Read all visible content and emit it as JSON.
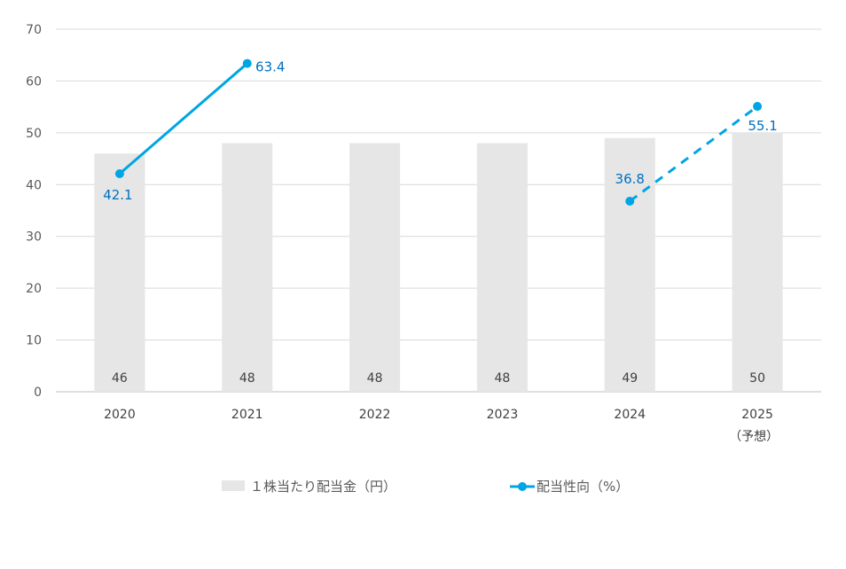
{
  "chart_data": {
    "type": "bar",
    "categories": [
      "2020",
      "2021",
      "2022",
      "2023",
      "2024",
      "2025"
    ],
    "category_sublabels": [
      "",
      "",
      "",
      "",
      "",
      "（予想）"
    ],
    "ylim": [
      0,
      70
    ],
    "yticks": [
      "0",
      "10",
      "20",
      "30",
      "40",
      "50",
      "60",
      "70"
    ],
    "grid": true,
    "legend_position": "bottom",
    "series": [
      {
        "name": "１株当たり配当金（円）",
        "type": "bar",
        "values": [
          46,
          48,
          48,
          48,
          49,
          50
        ],
        "labels": [
          "46",
          "48",
          "48",
          "48",
          "49",
          "50"
        ],
        "color": "#e6e6e6",
        "label_color": "#404040"
      },
      {
        "name": "配当性向（%）",
        "type": "line",
        "values": [
          42.1,
          63.4,
          null,
          null,
          36.8,
          55.1
        ],
        "labels": [
          "42.1",
          "63.4",
          "",
          "",
          "36.8",
          "55.1"
        ],
        "segments": [
          {
            "from": 0,
            "to": 1,
            "style": "solid"
          },
          {
            "from": 4,
            "to": 5,
            "style": "dashed"
          }
        ],
        "color": "#00a5e3",
        "label_color": "#0070c0"
      }
    ]
  }
}
